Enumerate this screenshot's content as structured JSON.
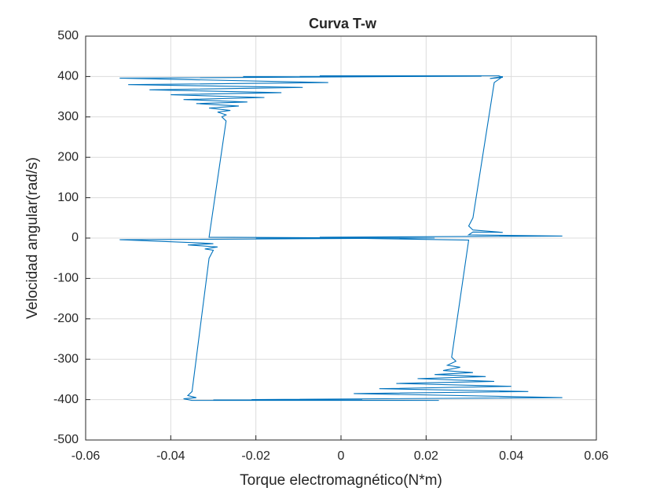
{
  "chart_data": {
    "type": "line",
    "title": "Curva T-w",
    "x_label": "Torque electromagnético(N*m)",
    "y_label": "Velocidad angular(rad/s)",
    "color": "#0072bd",
    "grid": true,
    "xlim": [
      -0.06,
      0.06
    ],
    "xticks": [
      -0.06,
      -0.04,
      -0.02,
      0,
      0.02,
      0.04,
      0.06
    ],
    "ylim": [
      -500,
      500
    ],
    "yticks": [
      -500,
      -400,
      -300,
      -200,
      -100,
      0,
      100,
      200,
      300,
      400,
      500
    ],
    "x": [
      0,
      0.02,
      -0.02,
      0.015,
      -0.005,
      0.052,
      0.03,
      0.031,
      0.038,
      0.031,
      0.03,
      0.031,
      0.036,
      0.038,
      0.035,
      0.038,
      0.037,
      0.02,
      -0.005,
      0.025,
      -0.023,
      0.033,
      -0.052,
      -0.003,
      -0.05,
      -0.009,
      -0.045,
      -0.014,
      -0.04,
      -0.018,
      -0.037,
      -0.022,
      -0.034,
      -0.024,
      -0.031,
      -0.026,
      -0.029,
      -0.027,
      -0.028,
      -0.027,
      -0.031,
      0.022,
      -0.052,
      -0.033,
      -0.03,
      -0.036,
      -0.029,
      -0.032,
      -0.03,
      -0.031,
      -0.035,
      -0.036,
      -0.034,
      -0.037,
      -0.035,
      0.023,
      -0.03,
      0.005,
      -0.021,
      0.052,
      0.003,
      0.044,
      0.009,
      0.04,
      0.013,
      0.036,
      0.018,
      0.034,
      0.022,
      0.031,
      0.024,
      0.028,
      0.025,
      0.027,
      0.026,
      0.03,
      0.0
    ],
    "values": [
      0,
      0,
      0,
      0,
      2,
      5,
      8,
      15,
      14,
      20,
      30,
      50,
      385,
      400,
      395,
      398,
      402,
      402,
      402,
      401,
      400,
      401,
      396,
      385,
      380,
      373,
      367,
      360,
      355,
      348,
      343,
      337,
      333,
      327,
      322,
      316,
      312,
      305,
      300,
      290,
      2,
      0,
      -4,
      -12,
      -14,
      -17,
      -22,
      -27,
      -30,
      -50,
      -380,
      -390,
      -395,
      -398,
      -402,
      -402,
      -401,
      -401,
      -400,
      -395,
      -385,
      -380,
      -373,
      -367,
      -360,
      -355,
      -348,
      -343,
      -338,
      -333,
      -328,
      -320,
      -315,
      -305,
      -295,
      -5,
      0
    ]
  }
}
